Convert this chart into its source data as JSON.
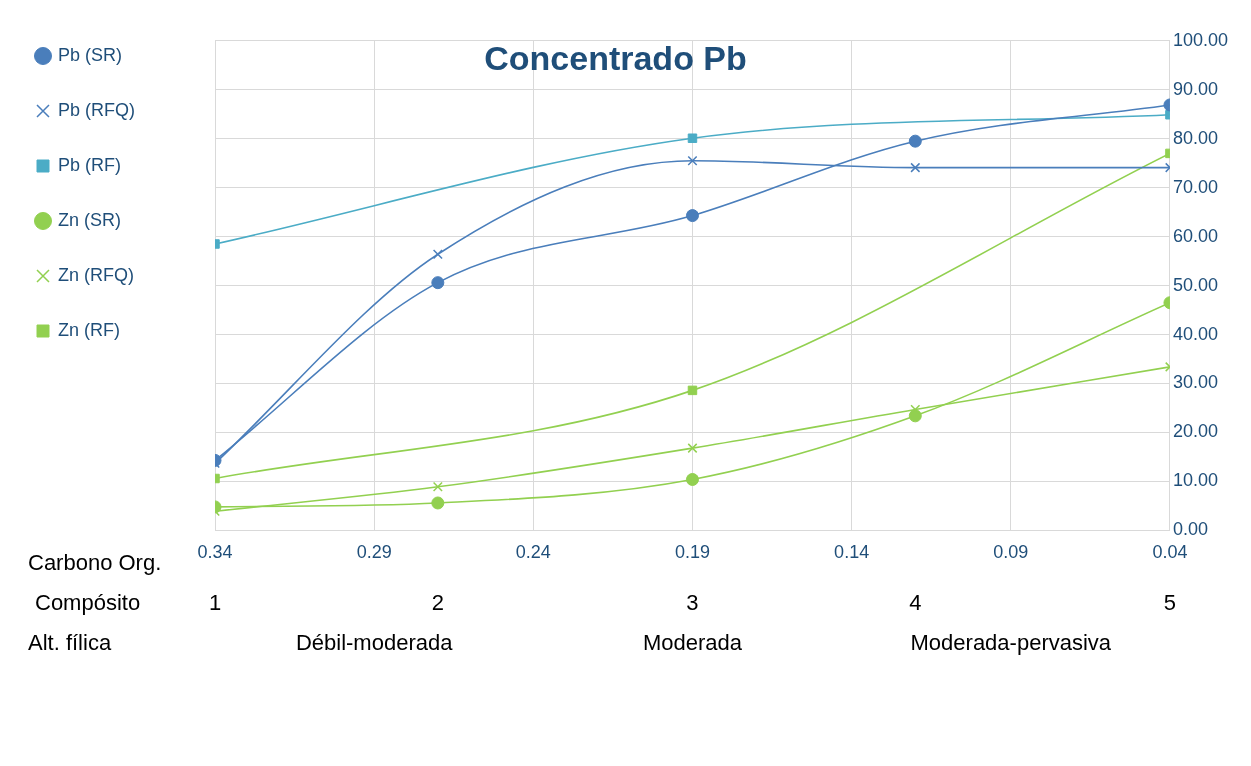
{
  "chart_data": {
    "type": "line",
    "title": "Concentrado Pb",
    "xlabel": "Carbono Org.",
    "x": [
      0.34,
      0.27,
      0.19,
      0.12,
      0.04
    ],
    "xlim": [
      0.34,
      0.04
    ],
    "xticks": [
      0.34,
      0.29,
      0.24,
      0.19,
      0.14,
      0.09,
      0.04
    ],
    "y2lim": [
      0,
      100
    ],
    "y2ticks": [
      {
        "value": 0,
        "label": "0.00"
      },
      {
        "value": 10,
        "label": "10.00"
      },
      {
        "value": 20,
        "label": "20.00"
      },
      {
        "value": 30,
        "label": "30.00"
      },
      {
        "value": 40,
        "label": "40.00"
      },
      {
        "value": 50,
        "label": "50.00"
      },
      {
        "value": 60,
        "label": "60.00"
      },
      {
        "value": 70,
        "label": "70.00"
      },
      {
        "value": 80,
        "label": "80.00"
      },
      {
        "value": 90,
        "label": "90.00"
      },
      {
        "value": 100,
        "label": "100.00"
      }
    ],
    "grid": true,
    "legend": "left",
    "line_style": "solid",
    "series": [
      {
        "name": "Pb (SR)",
        "color": "#4a7ebb",
        "marker": "circle",
        "axis": "y2",
        "values": [
          14.3,
          50.6,
          64.3,
          79.5,
          86.9
        ]
      },
      {
        "name": "Pb (RFQ)",
        "color": "#4a7ebb",
        "marker": "cross",
        "axis": "y2",
        "values": [
          13.7,
          56.4,
          75.5,
          74.1,
          74.1
        ]
      },
      {
        "name": "Pb (RF)",
        "color": "#4bacc6",
        "marker": "square",
        "axis": "y2",
        "x": [
          0.34,
          0.19,
          0.04
        ],
        "values": [
          58.5,
          80.1,
          84.9
        ]
      },
      {
        "name": "Zn (SR)",
        "color": "#92d050",
        "marker": "circle",
        "axis": "y2",
        "values": [
          4.8,
          5.6,
          10.4,
          23.4,
          46.5
        ]
      },
      {
        "name": "Zn (RFQ)",
        "color": "#92d050",
        "marker": "cross",
        "axis": "y2",
        "values": [
          3.9,
          8.9,
          16.8,
          24.7,
          33.4
        ]
      },
      {
        "name": "Zn (RF)",
        "color": "#92d050",
        "marker": "square",
        "axis": "y2",
        "x": [
          0.34,
          0.19,
          0.04
        ],
        "values": [
          10.6,
          28.6,
          77.0
        ]
      }
    ],
    "annotations": [
      "Compósito",
      "1",
      "2",
      "3",
      "4",
      "5",
      "Alt. fílica",
      "Débil-moderada",
      "Moderada",
      "Moderada-pervasiva"
    ]
  }
}
